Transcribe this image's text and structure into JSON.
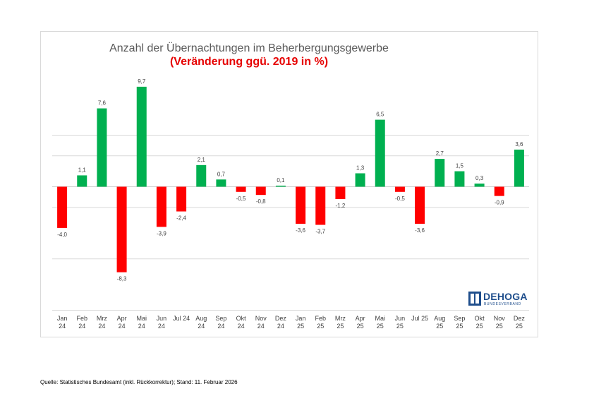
{
  "colors": {
    "positive": "#00b050",
    "negative": "#ff0000",
    "grid": "#d9d9d9"
  },
  "logo": {
    "name": "DEHOGA",
    "sub": "BUNDESVERBAND"
  },
  "source_note": "Quelle: Statistisches Bundesamt (inkl. Rückkorrektur); Stand: 11. Februar 2026",
  "chart_data": {
    "type": "bar",
    "title": "Anzahl der Übernachtungen im Beherbergungsgewerbe",
    "subtitle": "(Veränderung ggü. 2019 in %)",
    "xlabel": "",
    "ylabel": "",
    "ylim": [
      -11.5,
      10.5
    ],
    "gridlines": [
      5,
      3,
      -2,
      -7
    ],
    "grid": true,
    "categories": [
      [
        "Jan",
        "24"
      ],
      [
        "Feb",
        "24"
      ],
      [
        "Mrz",
        "24"
      ],
      [
        "Apr",
        "24"
      ],
      [
        "Mai",
        "24"
      ],
      [
        "Jun",
        "24"
      ],
      [
        "Jul 24",
        ""
      ],
      [
        "Aug",
        "24"
      ],
      [
        "Sep",
        "24"
      ],
      [
        "Okt",
        "24"
      ],
      [
        "Nov",
        "24"
      ],
      [
        "Dez",
        "24"
      ],
      [
        "Jan",
        "25"
      ],
      [
        "Feb",
        "25"
      ],
      [
        "Mrz",
        "25"
      ],
      [
        "Apr",
        "25"
      ],
      [
        "Mai",
        "25"
      ],
      [
        "Jun",
        "25"
      ],
      [
        "Jul 25",
        ""
      ],
      [
        "Aug",
        "25"
      ],
      [
        "Sep",
        "25"
      ],
      [
        "Okt",
        "25"
      ],
      [
        "Nov",
        "25"
      ],
      [
        "Dez",
        "25"
      ]
    ],
    "values": [
      -4.0,
      1.1,
      7.6,
      -8.3,
      9.7,
      -3.9,
      -2.4,
      2.1,
      0.7,
      -0.5,
      -0.8,
      0.1,
      -3.6,
      -3.7,
      -1.2,
      1.3,
      6.5,
      -0.5,
      -3.6,
      2.7,
      1.5,
      0.3,
      -0.9,
      3.6
    ],
    "value_labels": [
      "-4,0",
      "1,1",
      "7,6",
      "-8,3",
      "9,7",
      "-3,9",
      "-2,4",
      "2,1",
      "0,7",
      "-0,5",
      "-0,8",
      "0,1",
      "-3,6",
      "-3,7",
      "-1,2",
      "1,3",
      "6,5",
      "-0,5",
      "-3,6",
      "2,7",
      "1,5",
      "0,3",
      "-0,9",
      "3,6"
    ]
  }
}
